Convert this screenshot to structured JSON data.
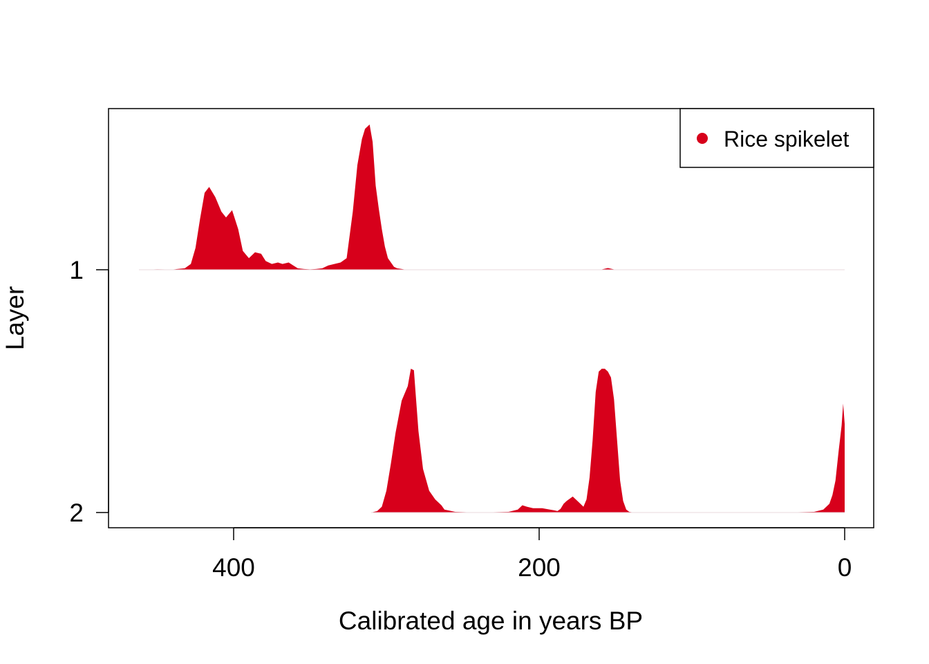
{
  "chart_data": {
    "type": "area",
    "title": "",
    "xlabel": "Calibrated age in years BP",
    "ylabel": "Layer",
    "x_reversed": true,
    "xlim": [
      482,
      -18
    ],
    "x_ticks": [
      400,
      200,
      0
    ],
    "y_ticks": [
      1,
      2
    ],
    "grid": false,
    "legend": {
      "position": "top-right",
      "entries": [
        {
          "label": "Rice spikelet",
          "color": "#d7001b"
        }
      ]
    },
    "fill_color": "#d7001b",
    "series": [
      {
        "layer": 1,
        "x": [
          462,
          450,
          440,
          432,
          428,
          425,
          422,
          419,
          416,
          412,
          408,
          405,
          401,
          397,
          394,
          390,
          386,
          382,
          379,
          375,
          371,
          368,
          364,
          361,
          358,
          354,
          350,
          346,
          342,
          338,
          334,
          330,
          326,
          322,
          319,
          316,
          314,
          311,
          309,
          308,
          307,
          305,
          303,
          301,
          299,
          297,
          295,
          293,
          290,
          288,
          286,
          283,
          240,
          160,
          155,
          150,
          0
        ],
        "y": [
          0,
          0.003,
          0.002,
          0.01,
          0.04,
          0.15,
          0.35,
          0.53,
          0.57,
          0.5,
          0.4,
          0.36,
          0.41,
          0.28,
          0.13,
          0.08,
          0.12,
          0.11,
          0.06,
          0.04,
          0.05,
          0.04,
          0.05,
          0.03,
          0.01,
          0.005,
          0.003,
          0.005,
          0.01,
          0.03,
          0.04,
          0.05,
          0.08,
          0.4,
          0.72,
          0.9,
          0.97,
          1.0,
          0.88,
          0.73,
          0.58,
          0.42,
          0.28,
          0.16,
          0.08,
          0.05,
          0.02,
          0.01,
          0.005,
          0.002,
          0.001,
          0,
          0,
          0,
          0.012,
          0,
          0
        ]
      },
      {
        "layer": 2,
        "x": [
          310,
          306,
          303,
          300,
          297,
          294,
          290,
          286,
          284,
          282,
          279,
          276,
          272,
          268,
          264,
          262,
          255,
          240,
          220,
          214,
          211,
          208,
          204,
          198,
          193,
          190,
          188,
          186,
          184,
          182,
          178,
          174,
          171,
          169,
          167,
          165,
          163,
          161,
          159,
          157,
          155,
          153,
          151,
          149,
          147,
          145,
          143,
          141,
          139,
          137,
          134,
          130,
          100,
          40,
          20,
          14,
          10,
          8,
          6,
          4,
          2,
          1,
          0
        ],
        "y": [
          0,
          0.01,
          0.04,
          0.15,
          0.34,
          0.55,
          0.77,
          0.87,
          0.99,
          0.98,
          0.56,
          0.3,
          0.15,
          0.09,
          0.05,
          0.02,
          0.005,
          0,
          0.005,
          0.02,
          0.05,
          0.04,
          0.03,
          0.03,
          0.02,
          0.015,
          0.01,
          0.025,
          0.06,
          0.08,
          0.11,
          0.07,
          0.04,
          0.09,
          0.24,
          0.5,
          0.83,
          0.97,
          0.99,
          0.99,
          0.97,
          0.93,
          0.78,
          0.5,
          0.22,
          0.08,
          0.02,
          0.005,
          0.002,
          0.001,
          0,
          0,
          0,
          0,
          0.005,
          0.02,
          0.06,
          0.12,
          0.22,
          0.42,
          0.6,
          0.75,
          0.61
        ]
      }
    ]
  }
}
